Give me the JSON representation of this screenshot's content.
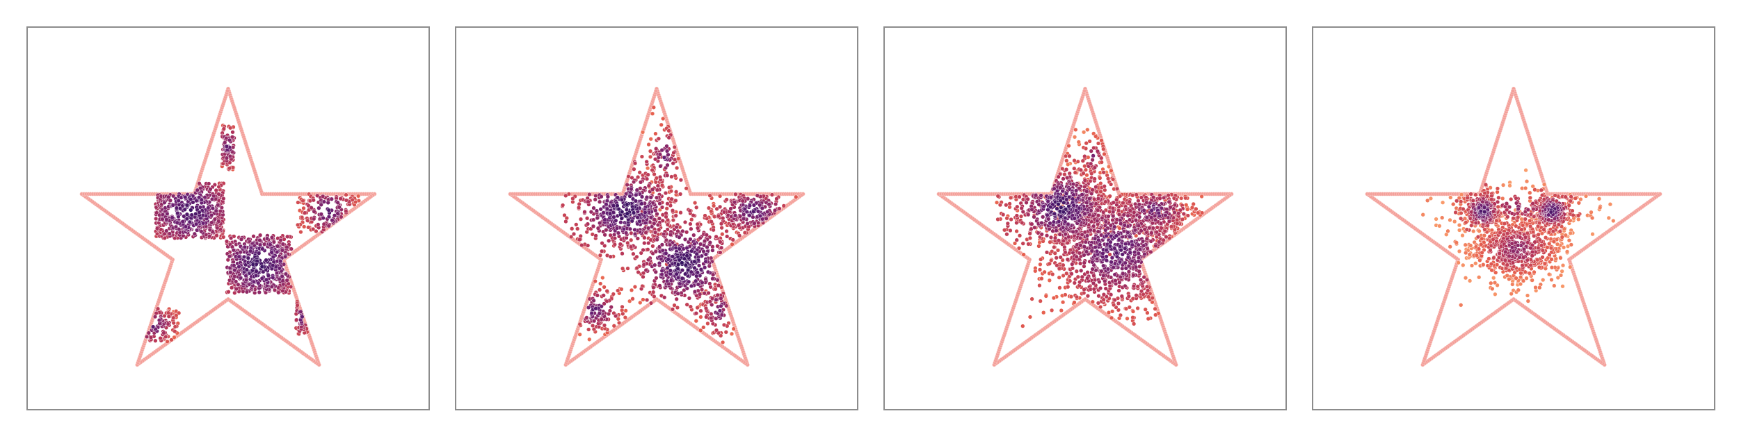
{
  "figure": {
    "panel_count": 4
  },
  "chart_data": [
    {
      "type": "scatter",
      "title": "",
      "xlabel": "",
      "ylabel": "",
      "xlim": [
        -1.3,
        1.3
      ],
      "ylim": [
        -1.1,
        1.4
      ],
      "grid": false,
      "boundary_color": "#f4a09a",
      "colormap": [
        "#2d1160",
        "#6b1f73",
        "#b1325a",
        "#e65e4e",
        "#fca36f"
      ],
      "boundary": [
        [
          0,
          1.0
        ],
        [
          0.22,
          0.31
        ],
        [
          0.95,
          0.31
        ],
        [
          0.36,
          -0.12
        ],
        [
          0.59,
          -0.81
        ],
        [
          0,
          -0.38
        ],
        [
          -0.59,
          -0.81
        ],
        [
          -0.36,
          -0.12
        ],
        [
          -0.95,
          0.31
        ],
        [
          -0.22,
          0.31
        ]
      ],
      "clusters": [
        {
          "cx": -0.25,
          "cy": 0.2,
          "sx": 0.18,
          "sy": 0.16,
          "n": 520,
          "shape": "box",
          "w": 0.44,
          "h": 0.36,
          "tone": 0.35
        },
        {
          "cx": 0.2,
          "cy": -0.15,
          "sx": 0.18,
          "sy": 0.16,
          "n": 520,
          "shape": "box",
          "w": 0.42,
          "h": 0.38,
          "tone": 0.3
        },
        {
          "cx": 0.65,
          "cy": 0.2,
          "sx": 0.1,
          "sy": 0.1,
          "n": 150,
          "shape": "box",
          "w": 0.4,
          "h": 0.28,
          "tone": 0.45
        },
        {
          "cx": 0.0,
          "cy": 0.62,
          "sx": 0.05,
          "sy": 0.1,
          "n": 80,
          "shape": "box",
          "w": 0.08,
          "h": 0.3,
          "tone": 0.55
        },
        {
          "cx": -0.5,
          "cy": -0.55,
          "sx": 0.1,
          "sy": 0.08,
          "n": 100,
          "shape": "box",
          "w": 0.36,
          "h": 0.22,
          "tone": 0.5
        },
        {
          "cx": 0.48,
          "cy": -0.5,
          "sx": 0.04,
          "sy": 0.08,
          "n": 40,
          "shape": "box",
          "w": 0.08,
          "h": 0.22,
          "tone": 0.55
        }
      ]
    },
    {
      "type": "scatter",
      "title": "",
      "xlabel": "",
      "ylabel": "",
      "xlim": [
        -1.3,
        1.3
      ],
      "ylim": [
        -1.1,
        1.4
      ],
      "grid": false,
      "boundary_color": "#f4a09a",
      "colormap": [
        "#2d1160",
        "#6b1f73",
        "#b1325a",
        "#e65e4e",
        "#fca36f"
      ],
      "boundary": [
        [
          0,
          1.0
        ],
        [
          0.22,
          0.31
        ],
        [
          0.95,
          0.31
        ],
        [
          0.36,
          -0.12
        ],
        [
          0.59,
          -0.81
        ],
        [
          0,
          -0.38
        ],
        [
          -0.59,
          -0.81
        ],
        [
          -0.36,
          -0.12
        ],
        [
          -0.95,
          0.31
        ],
        [
          -0.22,
          0.31
        ]
      ],
      "clusters": [
        {
          "cx": -0.2,
          "cy": 0.2,
          "sx": 0.17,
          "sy": 0.14,
          "n": 520,
          "shape": "gauss",
          "tone": 0.25
        },
        {
          "cx": 0.18,
          "cy": -0.15,
          "sx": 0.17,
          "sy": 0.16,
          "n": 520,
          "shape": "gauss",
          "tone": 0.25
        },
        {
          "cx": 0.62,
          "cy": 0.2,
          "sx": 0.15,
          "sy": 0.09,
          "n": 220,
          "shape": "gauss",
          "tone": 0.45
        },
        {
          "cx": 0.05,
          "cy": 0.55,
          "sx": 0.06,
          "sy": 0.14,
          "n": 90,
          "shape": "gauss",
          "tone": 0.6
        },
        {
          "cx": -0.4,
          "cy": -0.45,
          "sx": 0.12,
          "sy": 0.09,
          "n": 110,
          "shape": "gauss",
          "tone": 0.55
        },
        {
          "cx": 0.4,
          "cy": -0.45,
          "sx": 0.07,
          "sy": 0.12,
          "n": 80,
          "shape": "gauss",
          "tone": 0.6
        }
      ]
    },
    {
      "type": "scatter",
      "title": "",
      "xlabel": "",
      "ylabel": "",
      "xlim": [
        -1.3,
        1.3
      ],
      "ylim": [
        -1.1,
        1.4
      ],
      "grid": false,
      "boundary_color": "#f4a09a",
      "colormap": [
        "#2d1160",
        "#6b1f73",
        "#b1325a",
        "#e65e4e",
        "#fca36f"
      ],
      "boundary": [
        [
          0,
          1.0
        ],
        [
          0.22,
          0.31
        ],
        [
          0.95,
          0.31
        ],
        [
          0.36,
          -0.12
        ],
        [
          0.59,
          -0.81
        ],
        [
          0,
          -0.38
        ],
        [
          -0.59,
          -0.81
        ],
        [
          -0.36,
          -0.12
        ],
        [
          -0.95,
          0.31
        ],
        [
          -0.22,
          0.31
        ]
      ],
      "clusters": [
        {
          "cx": -0.15,
          "cy": 0.22,
          "sx": 0.17,
          "sy": 0.14,
          "n": 620,
          "shape": "gauss",
          "tone": 0.3
        },
        {
          "cx": 0.2,
          "cy": -0.05,
          "sx": 0.26,
          "sy": 0.24,
          "n": 1100,
          "shape": "gauss",
          "tone": 0.5
        },
        {
          "cx": 0.45,
          "cy": 0.2,
          "sx": 0.15,
          "sy": 0.09,
          "n": 260,
          "shape": "gauss",
          "tone": 0.55
        },
        {
          "cx": 0.05,
          "cy": 0.55,
          "sx": 0.06,
          "sy": 0.1,
          "n": 60,
          "shape": "gauss",
          "tone": 0.75
        }
      ]
    },
    {
      "type": "scatter",
      "title": "",
      "xlabel": "",
      "ylabel": "",
      "xlim": [
        -1.3,
        1.3
      ],
      "ylim": [
        -1.1,
        1.4
      ],
      "grid": false,
      "boundary_color": "#f4a09a",
      "colormap": [
        "#2d1160",
        "#6b1f73",
        "#b1325a",
        "#e65e4e",
        "#fca36f"
      ],
      "boundary": [
        [
          0,
          1.0
        ],
        [
          0.22,
          0.31
        ],
        [
          0.95,
          0.31
        ],
        [
          0.36,
          -0.12
        ],
        [
          0.59,
          -0.81
        ],
        [
          0,
          -0.38
        ],
        [
          -0.59,
          -0.81
        ],
        [
          -0.36,
          -0.12
        ],
        [
          -0.95,
          0.31
        ],
        [
          -0.22,
          0.31
        ]
      ],
      "clusters": [
        {
          "cx": -0.2,
          "cy": 0.2,
          "sx": 0.06,
          "sy": 0.06,
          "n": 240,
          "shape": "gauss",
          "tone": 0.4
        },
        {
          "cx": 0.25,
          "cy": 0.2,
          "sx": 0.06,
          "sy": 0.06,
          "n": 240,
          "shape": "gauss",
          "tone": 0.4
        },
        {
          "cx": 0.02,
          "cy": -0.05,
          "sx": 0.17,
          "sy": 0.12,
          "n": 700,
          "shape": "gauss",
          "tone": 0.82
        },
        {
          "cx": 0.02,
          "cy": 0.22,
          "sx": 0.26,
          "sy": 0.08,
          "n": 220,
          "shape": "gauss",
          "tone": 0.85
        }
      ]
    }
  ]
}
